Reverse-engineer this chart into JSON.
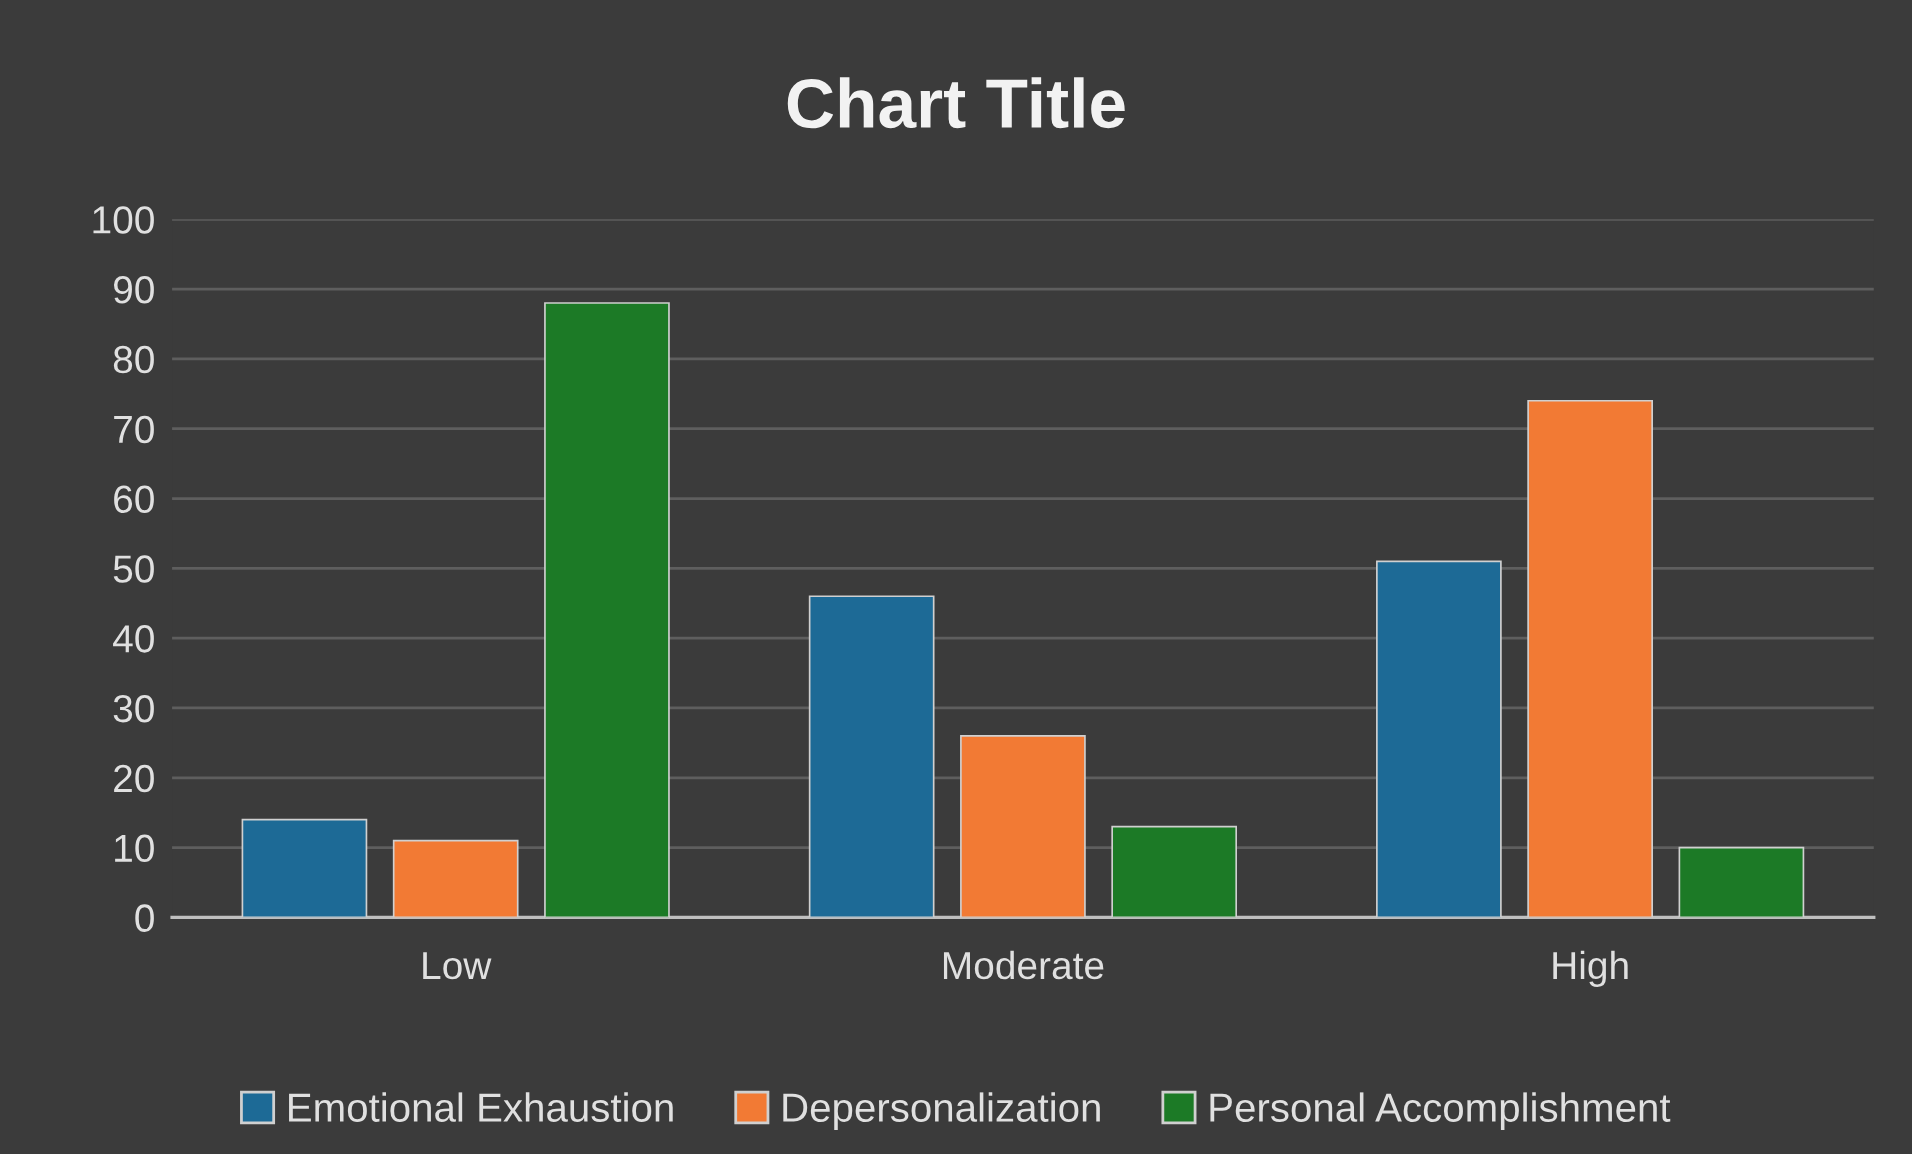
{
  "chart_data": {
    "type": "bar",
    "title": "Chart Title",
    "categories": [
      "Low",
      "Moderate",
      "High"
    ],
    "series": [
      {
        "name": "Emotional Exhaustion",
        "color": "#1d6a96",
        "values": [
          14,
          46,
          51
        ]
      },
      {
        "name": "Depersonalization",
        "color": "#f27a34",
        "values": [
          11,
          26,
          74
        ]
      },
      {
        "name": "Personal Accomplishment",
        "color": "#1c7a26",
        "values": [
          88,
          13,
          10
        ]
      }
    ],
    "ylim": [
      0,
      100
    ],
    "yticks": [
      0,
      10,
      20,
      30,
      40,
      50,
      60,
      70,
      80,
      90,
      100
    ],
    "grid": "y",
    "legend": "bottom"
  }
}
